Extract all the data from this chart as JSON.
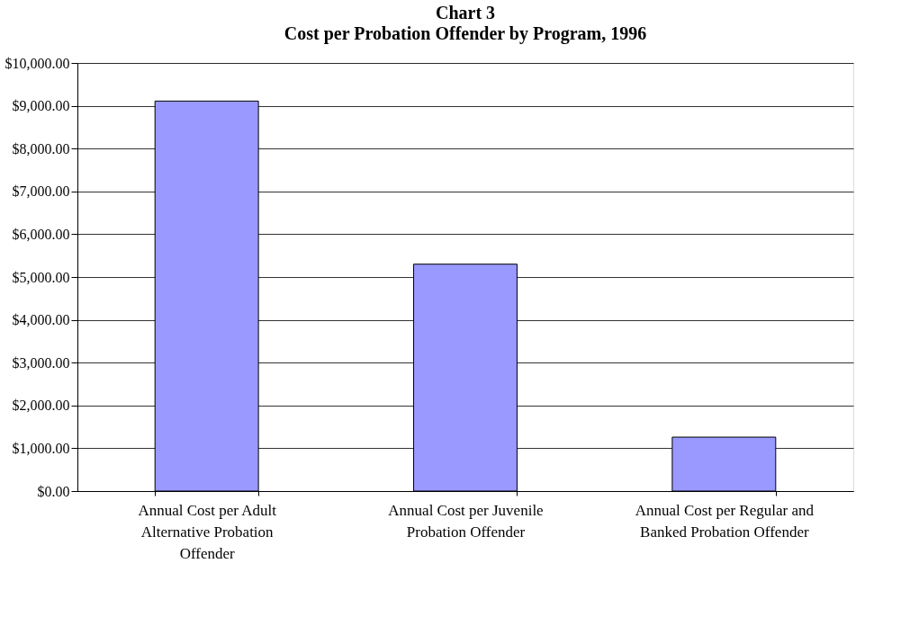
{
  "chart_data": {
    "type": "bar",
    "title": "Chart 3",
    "subtitle": "Cost per Probation Offender by Program, 1996",
    "categories": [
      "Annual Cost per Adult Alternative Probation Offender",
      "Annual Cost per Juvenile Probation Offender",
      "Annual Cost per Regular and Banked Probation Offender"
    ],
    "values": [
      9110,
      5300,
      1260
    ],
    "color": "#9999ff",
    "ylim": [
      0,
      10000
    ],
    "yticks": [
      {
        "value": 0,
        "label": "$0.00"
      },
      {
        "value": 1000,
        "label": "$1,000.00"
      },
      {
        "value": 2000,
        "label": "$2,000.00"
      },
      {
        "value": 3000,
        "label": "$3,000.00"
      },
      {
        "value": 4000,
        "label": "$4,000.00"
      },
      {
        "value": 5000,
        "label": "$5,000.00"
      },
      {
        "value": 6000,
        "label": "$6,000.00"
      },
      {
        "value": 7000,
        "label": "$7,000.00"
      },
      {
        "value": 8000,
        "label": "$8,000.00"
      },
      {
        "value": 9000,
        "label": "$9,000.00"
      },
      {
        "value": 10000,
        "label": "$10,000.00"
      }
    ],
    "grid": "y"
  }
}
